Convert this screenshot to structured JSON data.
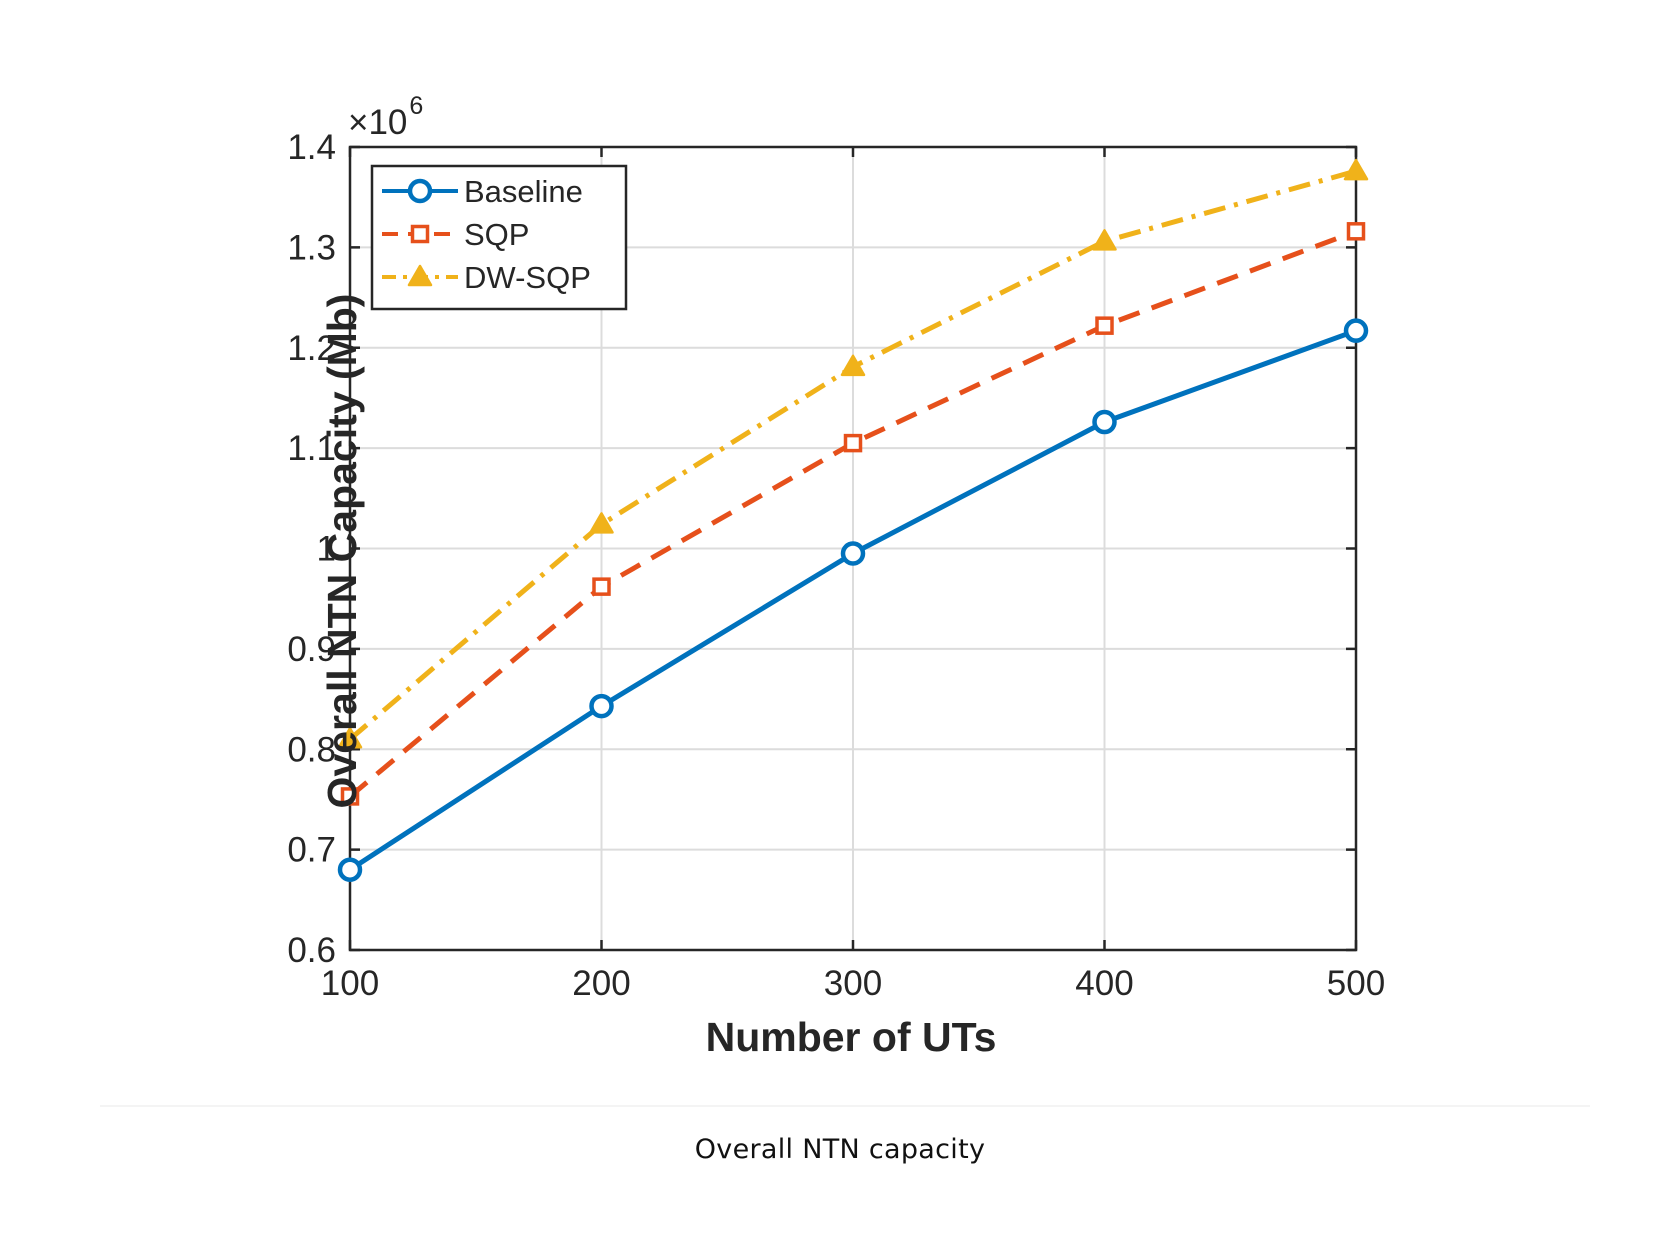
{
  "caption": "Overall NTN capacity",
  "chart_data": {
    "type": "line",
    "title": "",
    "xlabel": "Number of UTs",
    "ylabel": "Overall NTN Capacity (Mb)",
    "y_exponent_base": "×10",
    "y_exponent_power": "6",
    "x": [
      100,
      200,
      300,
      400,
      500
    ],
    "xlim": [
      100,
      500
    ],
    "ylim": [
      0.6,
      1.4
    ],
    "x_ticks": [
      100,
      200,
      300,
      400,
      500
    ],
    "x_tick_labels": [
      "100",
      "200",
      "300",
      "400",
      "500"
    ],
    "y_ticks": [
      0.6,
      0.7,
      0.8,
      0.9,
      1.0,
      1.1,
      1.2,
      1.3,
      1.4
    ],
    "y_tick_labels": [
      "0.6",
      "0.7",
      "0.8",
      "0.9",
      "1",
      "1.1",
      "1.2",
      "1.3",
      "1.4"
    ],
    "grid": true,
    "legend_position": "top-left",
    "series": [
      {
        "name": "Baseline",
        "values": [
          0.68,
          0.843,
          0.995,
          1.126,
          1.217
        ],
        "color": "#0072bd",
        "line_style": "solid",
        "marker": "circle"
      },
      {
        "name": "SQP",
        "values": [
          0.753,
          0.962,
          1.105,
          1.222,
          1.316
        ],
        "color": "#e6501b",
        "line_style": "dashed",
        "marker": "square"
      },
      {
        "name": "DW-SQP",
        "values": [
          0.81,
          1.024,
          1.181,
          1.306,
          1.376
        ],
        "color": "#f0b21a",
        "line_style": "dash-dot",
        "marker": "triangle"
      }
    ]
  }
}
